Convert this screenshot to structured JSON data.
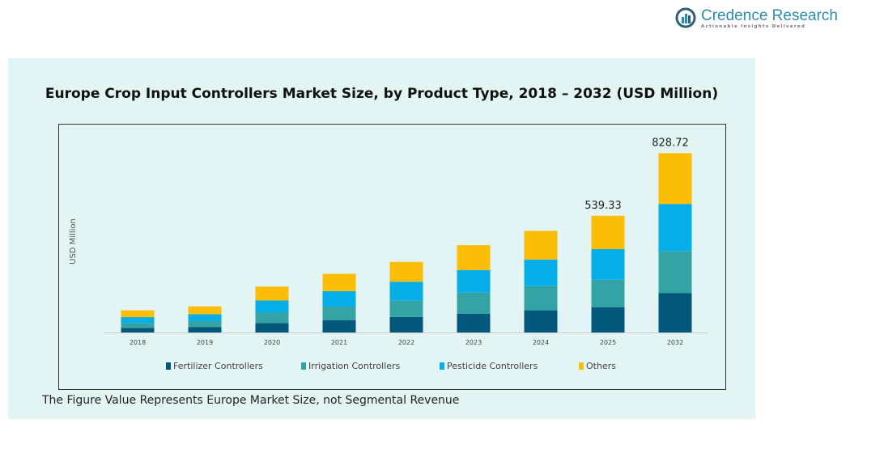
{
  "brand": {
    "name": "Credence Research",
    "tagline": "Actionable Insights Delivered"
  },
  "footnote": "The Figure Value Represents Europe Market Size, not Segmental Revenue",
  "chart_data": {
    "type": "bar",
    "stacked": true,
    "title": "Europe Crop Input Controllers Market Size, by Product Type, 2018 – 2032 (USD Million)",
    "xlabel": "",
    "ylabel": "USD Million",
    "categories": [
      "2018",
      "2019",
      "2020",
      "2021",
      "2022",
      "2023",
      "2024",
      "2025",
      "2032"
    ],
    "series": [
      {
        "name": "Fertilizer Controllers",
        "color": "#03577a",
        "values": [
          20.8,
          25.4,
          43.5,
          57.1,
          71.6,
          87.0,
          102.4,
          116.9,
          182.6
        ]
      },
      {
        "name": "Irrigation Controllers",
        "color": "#33a3a3",
        "values": [
          23.6,
          27.2,
          48.0,
          62.5,
          75.2,
          97.0,
          111.5,
          126.9,
          193.8
        ]
      },
      {
        "name": "Pesticide Controllers",
        "color": "#05aee8",
        "values": [
          26.3,
          31.7,
          56.2,
          71.6,
          87.9,
          104.2,
          123.3,
          141.4,
          217.4
        ]
      },
      {
        "name": "Others",
        "color": "#fbbd05",
        "values": [
          31.7,
          36.3,
          64.4,
          79.8,
          91.5,
          115.1,
          132.3,
          154.1,
          234.9
        ]
      }
    ],
    "data_labels": [
      {
        "category": "2025",
        "text": "539.33"
      },
      {
        "category": "2032",
        "text": "828.72"
      }
    ],
    "ylim": [
      0,
      830
    ],
    "grid": false,
    "legend_position": "bottom"
  }
}
